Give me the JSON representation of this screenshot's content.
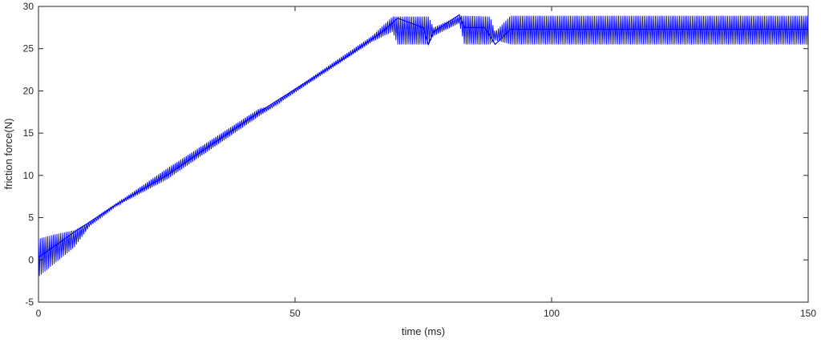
{
  "chart_data": {
    "type": "line",
    "title": "",
    "xlabel": "time (ms)",
    "ylabel": "friction force(N)",
    "xlim": [
      0,
      150
    ],
    "ylim": [
      -5,
      30
    ],
    "xticks": [
      0,
      50,
      100,
      150
    ],
    "yticks": [
      -5,
      0,
      5,
      10,
      15,
      20,
      25,
      30
    ],
    "grid": false,
    "legend": "none",
    "series": [
      {
        "color": "#0000ff",
        "x": [
          0,
          7,
          15,
          25,
          43,
          50,
          60,
          67,
          70,
          75,
          76,
          77,
          82,
          83,
          87,
          89,
          92,
          100,
          110,
          120,
          130,
          140,
          150
        ],
        "y": [
          0.3,
          3.3,
          6.5,
          10.0,
          17.5,
          20.2,
          24.0,
          27.0,
          28.6,
          27.5,
          25.5,
          27.0,
          29.0,
          27.5,
          27.5,
          25.5,
          27.3,
          27.3,
          27.3,
          27.3,
          27.3,
          27.3,
          27.3
        ],
        "oscillation_band": {
          "x": [
            0,
            3,
            7,
            10,
            15,
            25,
            43,
            45,
            65,
            69,
            70,
            76,
            77,
            82,
            83,
            88,
            89,
            92,
            150
          ],
          "lower": [
            -2.0,
            -0.5,
            1.5,
            4.0,
            6.3,
            9.5,
            17.0,
            17.8,
            25.8,
            27.0,
            25.5,
            25.5,
            26.5,
            28.0,
            25.5,
            25.5,
            26.0,
            25.5,
            25.5
          ],
          "upper": [
            2.5,
            3.0,
            3.5,
            4.5,
            6.6,
            10.8,
            17.9,
            18.2,
            26.5,
            28.8,
            28.8,
            28.8,
            27.5,
            28.9,
            28.9,
            28.8,
            27.0,
            28.9,
            28.9
          ]
        }
      }
    ]
  }
}
